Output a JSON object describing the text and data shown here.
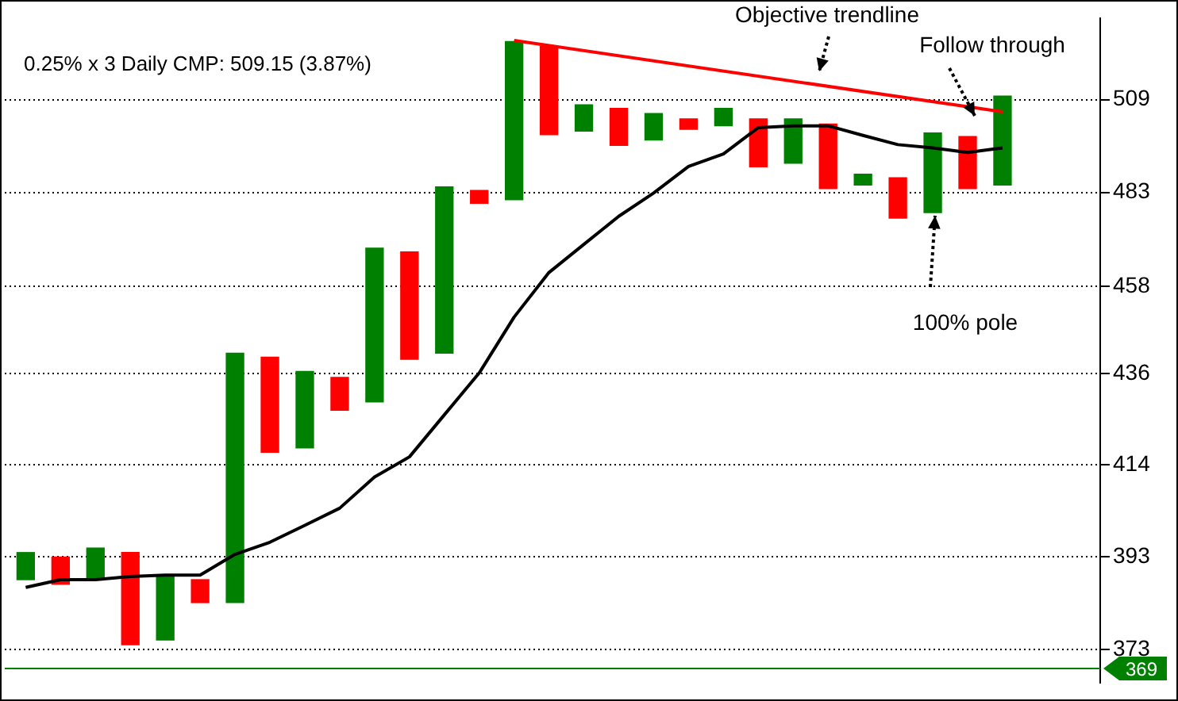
{
  "chart_data": {
    "type": "bar",
    "title": "0.25% x 3 Daily CMP: 509.15 (3.87%)",
    "categories": [
      null,
      null,
      null,
      null,
      null,
      null,
      null,
      null,
      null,
      null,
      null,
      null,
      null,
      null,
      null,
      null,
      null,
      null,
      null,
      null,
      null,
      null,
      null,
      null,
      null,
      null,
      null,
      null,
      null
    ],
    "series": [
      {
        "base": [
          388,
          387,
          388,
          374,
          375,
          383,
          383,
          417,
          418,
          427,
          429,
          439.5,
          441,
          480,
          481,
          499,
          500,
          496,
          497.5,
          500.5,
          501.5,
          490,
          491,
          484,
          485,
          476,
          477.5,
          484,
          485
        ],
        "values": [
          6,
          6,
          7,
          20,
          14,
          5,
          58,
          23,
          18.5,
          8,
          39,
          27.5,
          43.5,
          3.5,
          45,
          25.5,
          7.5,
          10.5,
          7.5,
          3,
          5,
          13.5,
          12.5,
          18,
          3,
          11,
          22,
          14.5,
          25
        ],
        "colors": [
          "#008000",
          "#ff0000",
          "#008000",
          "#ff0000",
          "#008000",
          "#ff0000",
          "#008000",
          "#ff0000",
          "#008000",
          "#ff0000",
          "#008000",
          "#ff0000",
          "#008000",
          "#ff0000",
          "#008000",
          "#ff0000",
          "#008000",
          "#ff0000",
          "#008000",
          "#ff0000",
          "#008000",
          "#ff0000",
          "#008000",
          "#ff0000",
          "#008000",
          "#ff0000",
          "#008000",
          "#ff0000",
          "#008000"
        ]
      },
      {
        "type": "line",
        "color": "#000000",
        "values": [
          386.3,
          388,
          388,
          388.7,
          389,
          389,
          393.6,
          396.3,
          400.1,
          404,
          411.2,
          415.9,
          425.9,
          436.1,
          450.1,
          461.6,
          469,
          476.5,
          482.8,
          490.1,
          493.6,
          501,
          501.5,
          501.5,
          498.8,
          496.2,
          495.3,
          494,
          495.3
        ]
      },
      {
        "type": "line",
        "color": "#ff0000",
        "values": [
          null,
          null,
          null,
          null,
          null,
          null,
          null,
          null,
          null,
          null,
          null,
          null,
          null,
          null,
          526.3,
          null,
          null,
          null,
          null,
          null,
          null,
          null,
          null,
          null,
          null,
          null,
          null,
          null,
          505.5
        ]
      }
    ],
    "ylim": [
      366,
      533
    ],
    "yticks": [
      373,
      393,
      414,
      436,
      458,
      483,
      509
    ],
    "log": "y",
    "grid": "y",
    "legend": false,
    "marker": "none",
    "ref_lines": [
      {
        "axis": "y",
        "value": 369,
        "label": "369",
        "color": "#008000"
      }
    ],
    "annotations": [
      "Objective trendline",
      "Follow through",
      "100% pole"
    ]
  }
}
